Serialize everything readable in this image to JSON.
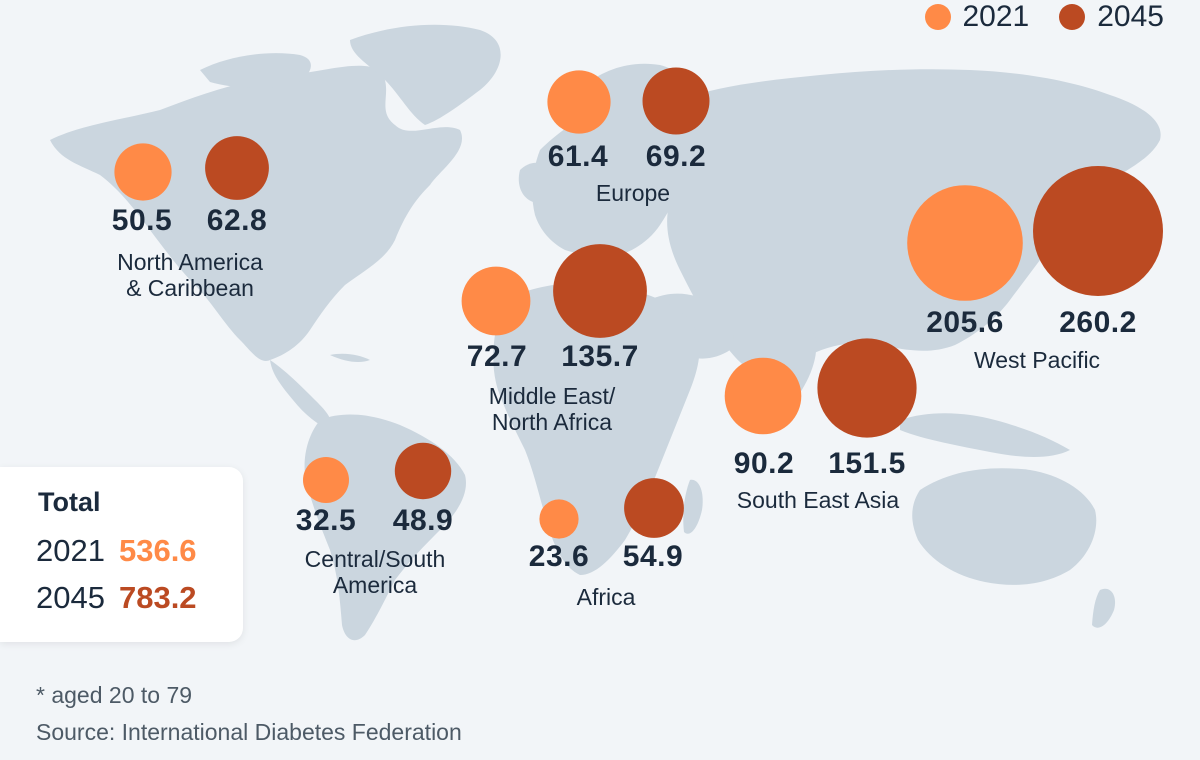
{
  "colors": {
    "y2021": "#ff8a47",
    "y2045": "#bb4a22",
    "land": "#cbd6df",
    "text": "#1b2a3c"
  },
  "legend": {
    "label_2021": "2021",
    "label_2045": "2045"
  },
  "regions": [
    {
      "id": "north-america",
      "name_line1": "North America",
      "name_line2": "& Caribbean",
      "v2021": 50.5,
      "v2045": 62.8,
      "v2021_label": "50.5",
      "v2045_label": "62.8"
    },
    {
      "id": "europe",
      "name_line1": "Europe",
      "name_line2": "",
      "v2021": 61.4,
      "v2045": 69.2,
      "v2021_label": "61.4",
      "v2045_label": "69.2"
    },
    {
      "id": "west-pacific",
      "name_line1": "West Pacific",
      "name_line2": "",
      "v2021": 205.6,
      "v2045": 260.2,
      "v2021_label": "205.6",
      "v2045_label": "260.2"
    },
    {
      "id": "middle-east",
      "name_line1": "Middle East/",
      "name_line2": "North Africa",
      "v2021": 72.7,
      "v2045": 135.7,
      "v2021_label": "72.7",
      "v2045_label": "135.7"
    },
    {
      "id": "south-east-asia",
      "name_line1": "South East Asia",
      "name_line2": "",
      "v2021": 90.2,
      "v2045": 151.5,
      "v2021_label": "90.2",
      "v2045_label": "151.5"
    },
    {
      "id": "central-south-america",
      "name_line1": "Central/South",
      "name_line2": "America",
      "v2021": 32.5,
      "v2045": 48.9,
      "v2021_label": "32.5",
      "v2045_label": "48.9"
    },
    {
      "id": "africa",
      "name_line1": "Africa",
      "name_line2": "",
      "v2021": 23.6,
      "v2045": 54.9,
      "v2021_label": "23.6",
      "v2045_label": "54.9"
    }
  ],
  "total": {
    "title": "Total",
    "year_2021": "2021",
    "value_2021": "536.6",
    "year_2045": "2045",
    "value_2045": "783.2"
  },
  "footnote": "* aged 20 to 79",
  "source": "Source: International Diabetes Federation"
}
